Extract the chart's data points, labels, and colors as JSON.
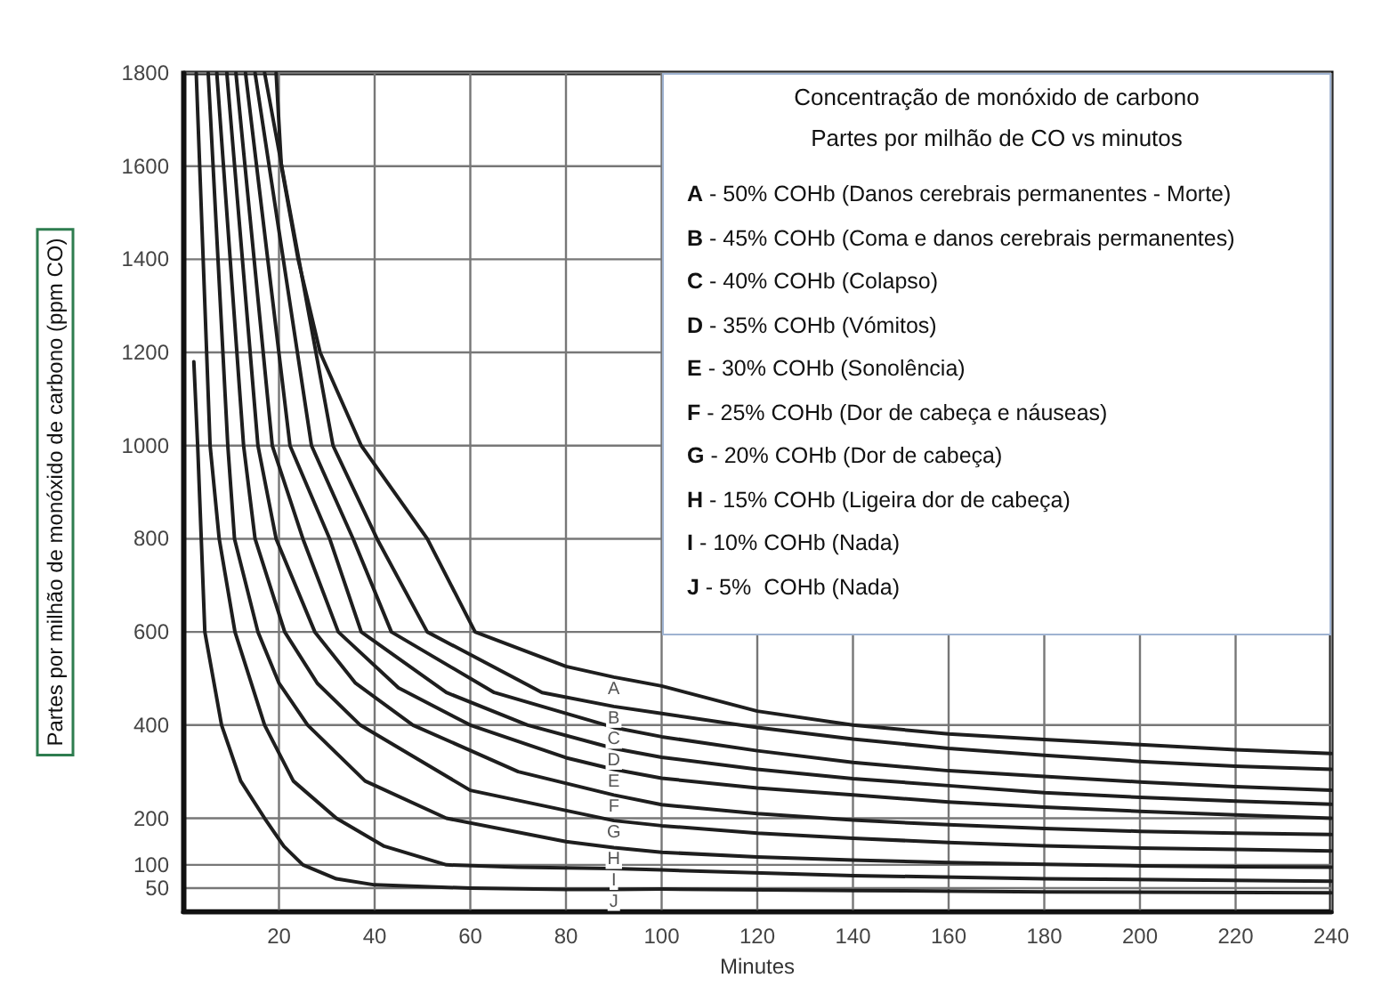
{
  "chart_data": {
    "type": "line",
    "title": "Concentração de monóxido de carbono",
    "subtitle": "Partes por milhão de CO vs minutos",
    "xlabel": "Minutes",
    "ylabel": "Partes por milhão de monóxido de carbono (ppm CO)",
    "xlim": [
      0,
      240
    ],
    "xticks": [
      20,
      40,
      60,
      80,
      100,
      120,
      140,
      160,
      180,
      200,
      220,
      240
    ],
    "ylim": [
      0,
      1800
    ],
    "yticks": [
      50,
      100,
      200,
      400,
      600,
      800,
      1000,
      1200,
      1400,
      1600,
      1800
    ],
    "grid": true,
    "series": [
      {
        "name": "A",
        "color": "#1e1e1e",
        "x": [
          19.4,
          20.5,
          24,
          28.6,
          37.2,
          51,
          61,
          80,
          90,
          100,
          120,
          140,
          160,
          180,
          200,
          220,
          240
        ],
        "values": [
          1800,
          1600,
          1400,
          1200,
          1000,
          800,
          600,
          526,
          503,
          484,
          430,
          400,
          381,
          369,
          358,
          347,
          339
        ]
      },
      {
        "name": "B",
        "color": "#1e1e1e",
        "x": [
          17,
          31.3,
          40.5,
          51,
          75,
          90,
          100,
          120,
          140,
          160,
          180,
          200,
          220,
          240
        ],
        "values": [
          1800,
          1000,
          800,
          600,
          470,
          440,
          425,
          395,
          370,
          350,
          335,
          322,
          312,
          305
        ]
      },
      {
        "name": "C",
        "color": "#1e1e1e",
        "x": [
          15,
          26.8,
          35.5,
          43.5,
          65,
          90,
          100,
          120,
          140,
          160,
          180,
          200,
          220,
          240
        ],
        "values": [
          1800,
          1000,
          800,
          600,
          470,
          395,
          375,
          345,
          320,
          302,
          290,
          278,
          268,
          260
        ]
      },
      {
        "name": "D",
        "color": "#1e1e1e",
        "x": [
          13,
          22.3,
          30.6,
          37.2,
          55,
          72,
          90,
          100,
          120,
          140,
          160,
          180,
          200,
          220,
          240
        ],
        "values": [
          1800,
          1000,
          800,
          600,
          470,
          400,
          350,
          331,
          305,
          285,
          270,
          255,
          245,
          237,
          230
        ]
      },
      {
        "name": "E",
        "color": "#1e1e1e",
        "x": [
          11,
          18.6,
          25,
          32.4,
          45,
          60,
          80,
          90,
          100,
          120,
          140,
          160,
          180,
          200,
          220,
          240
        ],
        "values": [
          1800,
          1000,
          800,
          600,
          480,
          400,
          330,
          305,
          286,
          265,
          250,
          235,
          224,
          215,
          207,
          200
        ]
      },
      {
        "name": "F",
        "color": "#1e1e1e",
        "x": [
          9.1,
          15.6,
          19.4,
          27.5,
          36,
          48,
          70,
          90,
          100,
          120,
          140,
          160,
          180,
          200,
          220,
          240
        ],
        "values": [
          1800,
          1000,
          800,
          600,
          490,
          400,
          300,
          250,
          229,
          210,
          196,
          186,
          178,
          172,
          168,
          165
        ]
      },
      {
        "name": "G",
        "color": "#1e1e1e",
        "x": [
          7,
          12.6,
          15,
          21.2,
          28,
          37,
          60,
          90,
          100,
          120,
          140,
          160,
          180,
          200,
          220,
          240
        ],
        "values": [
          1800,
          1000,
          800,
          600,
          490,
          400,
          260,
          195,
          184,
          168,
          157,
          148,
          141,
          136,
          133,
          130
        ]
      },
      {
        "name": "H",
        "color": "#1e1e1e",
        "x": [
          5.2,
          9.3,
          10.7,
          15.6,
          20,
          26,
          38,
          55,
          80,
          90,
          100,
          120,
          140,
          160,
          180,
          200,
          220,
          240
        ],
        "values": [
          1800,
          1000,
          800,
          600,
          490,
          400,
          280,
          200,
          150,
          137,
          127,
          117,
          110,
          105,
          101,
          98,
          96,
          95
        ]
      },
      {
        "name": "I",
        "color": "#1e1e1e",
        "x": [
          2.7,
          5.6,
          7.5,
          10.8,
          17,
          23,
          32,
          42,
          55,
          70,
          90,
          100,
          140,
          180,
          240
        ],
        "values": [
          1800,
          1000,
          800,
          600,
          400,
          280,
          200,
          140,
          100,
          95,
          92,
          89,
          77,
          70,
          65
        ]
      },
      {
        "name": "J",
        "color": "#1e1e1e",
        "x": [
          2.2,
          3,
          4.5,
          8,
          12,
          17,
          21,
          25,
          32,
          40,
          60,
          80,
          90,
          100,
          140,
          180,
          240
        ],
        "values": [
          1180,
          1000,
          600,
          400,
          280,
          200,
          140,
          100,
          70,
          57,
          50,
          47,
          47,
          48,
          45,
          42,
          40
        ]
      }
    ],
    "annotations": [
      "A - 50% COHb (Danos cerebrais permanentes - Morte)",
      "B - 45% COHb (Coma e danos cerebrais permanentes)",
      "C - 40% COHb (Colapso)",
      "D - 35% COHb (Vómitos)",
      "E - 30% COHb (Sonolência)",
      "F - 25% COHb (Dor de cabeça e náuseas)",
      "G - 20% COHb (Dor de cabeça)",
      "H - 15% COHb (Ligeira dor de cabeça)",
      "I - 10% COHb (Nada)",
      "J - 5%  COHb (Nada)"
    ]
  }
}
